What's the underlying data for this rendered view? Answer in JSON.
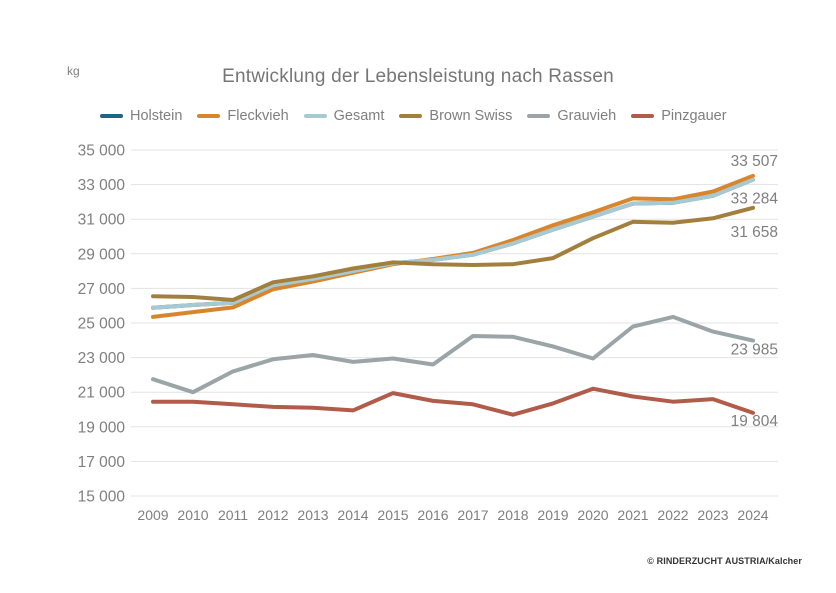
{
  "footer": {
    "credit": "© RINDERZUCHT AUSTRIA/Kalcher"
  },
  "chart_data": {
    "type": "line",
    "title": "Entwicklung der Lebensleistung nach Rassen",
    "unit_label": "kg",
    "xlabel": "",
    "ylabel": "kg",
    "x": [
      2009,
      2010,
      2011,
      2012,
      2013,
      2014,
      2015,
      2016,
      2017,
      2018,
      2019,
      2020,
      2021,
      2022,
      2023,
      2024
    ],
    "ylim": [
      15000,
      35000
    ],
    "ytick_step": 2000,
    "grid": "horizontal-only",
    "legend_position": "top",
    "text_color": "#7f7f7f",
    "gridline_color": "#e3e3e3",
    "series": [
      {
        "name": "Holstein",
        "color": "#1f6480",
        "note": "line not distinctly visible in plot; coincides with Gesamt",
        "values": [
          25880,
          26040,
          26170,
          27180,
          27550,
          28000,
          28450,
          28650,
          28950,
          29600,
          30400,
          31150,
          31900,
          31950,
          32350,
          33284
        ]
      },
      {
        "name": "Fleckvieh",
        "color": "#d9852c",
        "values": [
          25350,
          25630,
          25900,
          26950,
          27400,
          27900,
          28400,
          28700,
          29050,
          29800,
          30650,
          31400,
          32200,
          32150,
          32600,
          33507
        ]
      },
      {
        "name": "Gesamt",
        "color": "#a7c9d1",
        "values": [
          25880,
          26040,
          26170,
          27180,
          27550,
          28000,
          28450,
          28650,
          28950,
          29600,
          30400,
          31150,
          31900,
          31950,
          32350,
          33284
        ]
      },
      {
        "name": "Brown Swiss",
        "color": "#a37f3d",
        "values": [
          26550,
          26500,
          26330,
          27350,
          27700,
          28150,
          28500,
          28400,
          28350,
          28400,
          28750,
          29900,
          30850,
          30800,
          31050,
          31658
        ]
      },
      {
        "name": "Grauvieh",
        "color": "#9ba4a6",
        "values": [
          21750,
          21000,
          22200,
          22900,
          23150,
          22750,
          22950,
          22600,
          24250,
          24200,
          23650,
          22950,
          24800,
          25350,
          24500,
          23985
        ]
      },
      {
        "name": "Pinzgauer",
        "color": "#b15b4a",
        "values": [
          20450,
          20450,
          20300,
          20150,
          20100,
          19950,
          20950,
          20500,
          20300,
          19700,
          20350,
          21200,
          20750,
          20450,
          20600,
          19804
        ]
      }
    ],
    "end_labels": [
      {
        "text": "33 507",
        "series": "Fleckvieh",
        "dy": -10
      },
      {
        "text": "33 284",
        "series": "Gesamt",
        "dy": 24
      },
      {
        "text": "31 658",
        "series": "Brown Swiss",
        "dy": 29
      },
      {
        "text": "23 985",
        "series": "Grauvieh",
        "dy": 14
      },
      {
        "text": "19 804",
        "series": "Pinzgauer",
        "dy": 13
      }
    ]
  }
}
